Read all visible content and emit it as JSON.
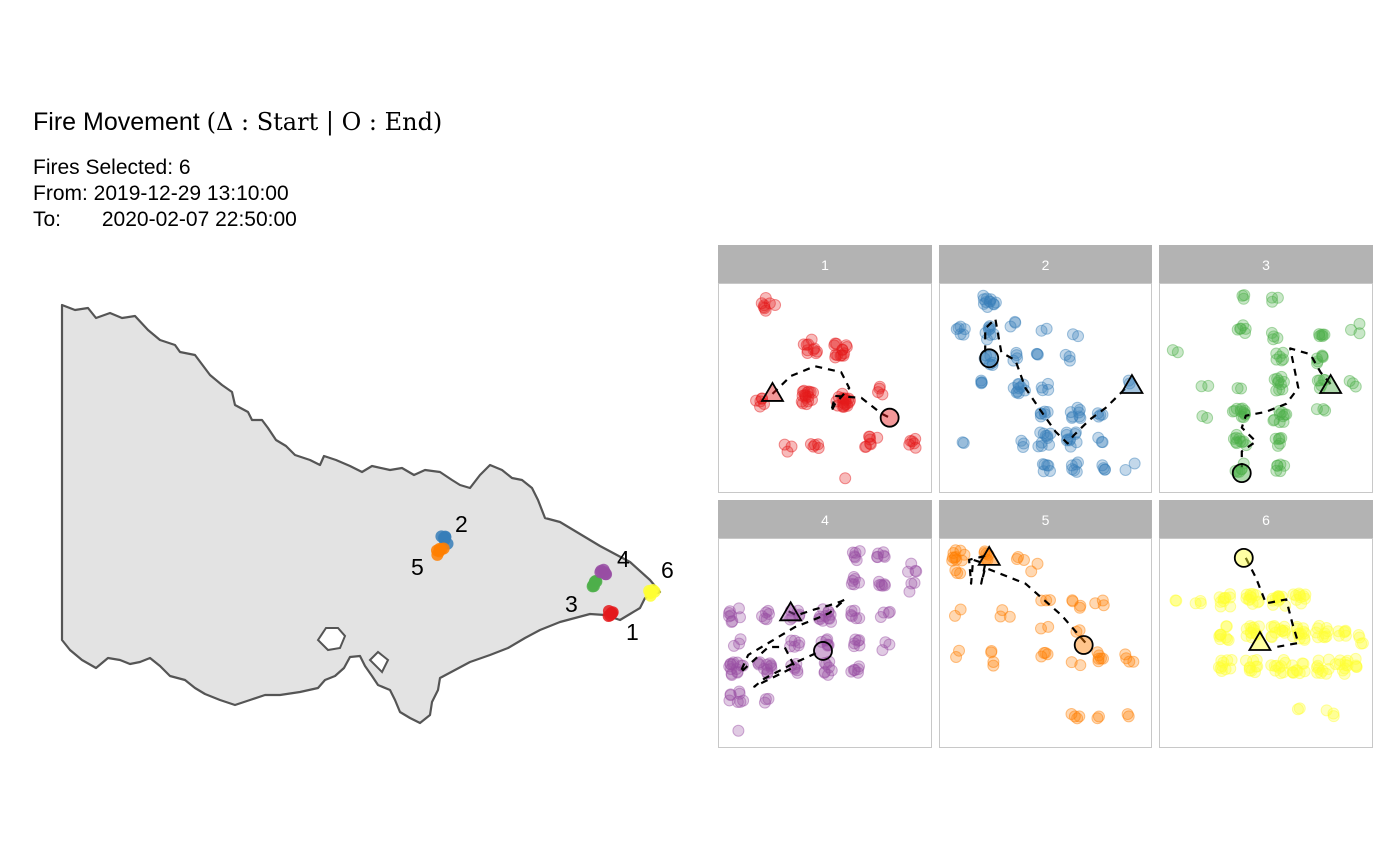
{
  "header": {
    "title_prefix": "Fire Movement ",
    "title_math": "(Δ : Start | O : End)",
    "subtitle_line1": "Fires Selected: 6",
    "subtitle_line2": "From: 2019-12-29 13:10:00",
    "subtitle_line3": "To:       2020-02-07 22:50:00"
  },
  "colors": {
    "1": "#e41a1c",
    "2": "#377eb8",
    "3": "#4daf4a",
    "4": "#984ea3",
    "5": "#ff7f00",
    "6": "#ffff33",
    "map_fill": "#e3e3e3",
    "map_stroke": "#555555",
    "strip_bg": "#b3b3b3",
    "panel_border": "#c8c8c8"
  },
  "chart_data": [
    {
      "type": "scatter",
      "name": "map",
      "labels": [
        "1",
        "2",
        "3",
        "4",
        "5",
        "6"
      ]
    },
    {
      "type": "scatter",
      "name": "facets",
      "facets": [
        {
          "label": "1",
          "clusters": [
            [
              0.43,
              0.29,
              10
            ],
            [
              0.58,
              0.31,
              14
            ],
            [
              0.42,
              0.55,
              16
            ],
            [
              0.59,
              0.56,
              18
            ],
            [
              0.18,
              0.57,
              6
            ],
            [
              0.22,
              0.08,
              8
            ],
            [
              0.45,
              0.8,
              5
            ],
            [
              0.73,
              0.78,
              8
            ],
            [
              0.93,
              0.78,
              6
            ],
            [
              0.32,
              0.8,
              3
            ],
            [
              0.78,
              0.51,
              4
            ],
            [
              0.58,
              0.95,
              1
            ]
          ],
          "path": [
            [
              0.24,
              0.53
            ],
            [
              0.33,
              0.44
            ],
            [
              0.45,
              0.39
            ],
            [
              0.58,
              0.42
            ],
            [
              0.62,
              0.5
            ],
            [
              0.55,
              0.58
            ],
            [
              0.53,
              0.62
            ],
            [
              0.55,
              0.54
            ],
            [
              0.68,
              0.55
            ],
            [
              0.78,
              0.63
            ],
            [
              0.82,
              0.65
            ]
          ],
          "start": [
            0.24,
            0.53
          ],
          "end": [
            0.82,
            0.65
          ]
        },
        {
          "label": "2",
          "clusters": [
            [
              0.22,
              0.06,
              12
            ],
            [
              0.08,
              0.21,
              6
            ],
            [
              0.22,
              0.22,
              8
            ],
            [
              0.35,
              0.19,
              3
            ],
            [
              0.5,
              0.22,
              2
            ],
            [
              0.64,
              0.22,
              2
            ],
            [
              0.22,
              0.36,
              6
            ],
            [
              0.35,
              0.34,
              4
            ],
            [
              0.48,
              0.34,
              3
            ],
            [
              0.62,
              0.34,
              3
            ],
            [
              0.2,
              0.48,
              4
            ],
            [
              0.37,
              0.5,
              10
            ],
            [
              0.5,
              0.5,
              4
            ],
            [
              0.5,
              0.63,
              6
            ],
            [
              0.64,
              0.63,
              8
            ],
            [
              0.78,
              0.63,
              4
            ],
            [
              0.5,
              0.76,
              10
            ],
            [
              0.64,
              0.76,
              10
            ],
            [
              0.37,
              0.79,
              3
            ],
            [
              0.78,
              0.76,
              3
            ],
            [
              0.5,
              0.9,
              6
            ],
            [
              0.64,
              0.9,
              6
            ],
            [
              0.78,
              0.9,
              4
            ],
            [
              0.92,
              0.9,
              2
            ],
            [
              0.92,
              0.48,
              2
            ],
            [
              0.1,
              0.79,
              2
            ]
          ],
          "path": [
            [
              0.2,
              0.32
            ],
            [
              0.2,
              0.2
            ],
            [
              0.25,
              0.15
            ],
            [
              0.28,
              0.32
            ],
            [
              0.35,
              0.36
            ],
            [
              0.4,
              0.5
            ],
            [
              0.48,
              0.62
            ],
            [
              0.55,
              0.72
            ],
            [
              0.61,
              0.78
            ],
            [
              0.64,
              0.74
            ],
            [
              0.72,
              0.66
            ],
            [
              0.8,
              0.6
            ],
            [
              0.9,
              0.5
            ]
          ],
          "start": [
            0.93,
            0.49
          ],
          "end": [
            0.22,
            0.35
          ]
        },
        {
          "label": "3",
          "clusters": [
            [
              0.4,
              0.05,
              3
            ],
            [
              0.55,
              0.06,
              3
            ],
            [
              0.38,
              0.2,
              6
            ],
            [
              0.55,
              0.24,
              4
            ],
            [
              0.77,
              0.22,
              6
            ],
            [
              0.94,
              0.2,
              3
            ],
            [
              0.05,
              0.33,
              2
            ],
            [
              0.57,
              0.34,
              6
            ],
            [
              0.77,
              0.36,
              6
            ],
            [
              0.57,
              0.48,
              10
            ],
            [
              0.77,
              0.48,
              6
            ],
            [
              0.93,
              0.48,
              3
            ],
            [
              0.2,
              0.48,
              2
            ],
            [
              0.37,
              0.48,
              2
            ],
            [
              0.2,
              0.63,
              2
            ],
            [
              0.37,
              0.63,
              12
            ],
            [
              0.57,
              0.64,
              10
            ],
            [
              0.77,
              0.63,
              3
            ],
            [
              0.37,
              0.77,
              10
            ],
            [
              0.57,
              0.77,
              6
            ],
            [
              0.37,
              0.9,
              6
            ],
            [
              0.57,
              0.9,
              6
            ]
          ],
          "path": [
            [
              0.82,
              0.48
            ],
            [
              0.77,
              0.42
            ],
            [
              0.72,
              0.33
            ],
            [
              0.62,
              0.3
            ],
            [
              0.64,
              0.4
            ],
            [
              0.66,
              0.5
            ],
            [
              0.6,
              0.58
            ],
            [
              0.5,
              0.62
            ],
            [
              0.4,
              0.64
            ],
            [
              0.38,
              0.7
            ],
            [
              0.45,
              0.77
            ],
            [
              0.38,
              0.82
            ],
            [
              0.38,
              0.9
            ]
          ],
          "start": [
            0.82,
            0.49
          ],
          "end": [
            0.38,
            0.93
          ]
        },
        {
          "label": "4",
          "clusters": [
            [
              0.65,
              0.06,
              6
            ],
            [
              0.78,
              0.06,
              6
            ],
            [
              0.93,
              0.12,
              4
            ],
            [
              0.65,
              0.19,
              6
            ],
            [
              0.78,
              0.19,
              6
            ],
            [
              0.92,
              0.22,
              3
            ],
            [
              0.06,
              0.36,
              8
            ],
            [
              0.2,
              0.36,
              6
            ],
            [
              0.35,
              0.36,
              6
            ],
            [
              0.5,
              0.36,
              12
            ],
            [
              0.65,
              0.36,
              6
            ],
            [
              0.8,
              0.36,
              4
            ],
            [
              0.06,
              0.5,
              3
            ],
            [
              0.35,
              0.5,
              6
            ],
            [
              0.5,
              0.5,
              6
            ],
            [
              0.65,
              0.5,
              6
            ],
            [
              0.8,
              0.52,
              3
            ],
            [
              0.06,
              0.63,
              14
            ],
            [
              0.2,
              0.63,
              12
            ],
            [
              0.35,
              0.63,
              6
            ],
            [
              0.5,
              0.63,
              8
            ],
            [
              0.65,
              0.63,
              6
            ],
            [
              0.06,
              0.78,
              8
            ],
            [
              0.2,
              0.78,
              3
            ],
            [
              0.06,
              0.92,
              1
            ]
          ],
          "path": [
            [
              0.32,
              0.34
            ],
            [
              0.36,
              0.36
            ],
            [
              0.45,
              0.33
            ],
            [
              0.52,
              0.31
            ],
            [
              0.58,
              0.29
            ],
            [
              0.6,
              0.28
            ],
            [
              0.52,
              0.35
            ],
            [
              0.45,
              0.38
            ],
            [
              0.35,
              0.42
            ],
            [
              0.22,
              0.5
            ],
            [
              0.12,
              0.56
            ],
            [
              0.08,
              0.65
            ],
            [
              0.22,
              0.52
            ],
            [
              0.3,
              0.52
            ],
            [
              0.35,
              0.62
            ],
            [
              0.15,
              0.72
            ],
            [
              0.2,
              0.68
            ],
            [
              0.35,
              0.6
            ],
            [
              0.48,
              0.54
            ]
          ],
          "start": [
            0.33,
            0.35
          ],
          "end": [
            0.49,
            0.54
          ]
        },
        {
          "label": "5",
          "clusters": [
            [
              0.07,
              0.06,
              10
            ],
            [
              0.22,
              0.06,
              6
            ],
            [
              0.37,
              0.08,
              3
            ],
            [
              0.07,
              0.14,
              3
            ],
            [
              0.45,
              0.12,
              2
            ],
            [
              0.5,
              0.3,
              3
            ],
            [
              0.65,
              0.3,
              4
            ],
            [
              0.77,
              0.3,
              3
            ],
            [
              0.07,
              0.35,
              2
            ],
            [
              0.3,
              0.35,
              3
            ],
            [
              0.5,
              0.44,
              2
            ],
            [
              0.65,
              0.46,
              2
            ],
            [
              0.07,
              0.55,
              2
            ],
            [
              0.22,
              0.55,
              2
            ],
            [
              0.5,
              0.56,
              4
            ],
            [
              0.77,
              0.57,
              6
            ],
            [
              0.92,
              0.58,
              4
            ],
            [
              0.65,
              0.62,
              2
            ],
            [
              0.22,
              0.62,
              2
            ],
            [
              0.65,
              0.88,
              4
            ],
            [
              0.92,
              0.87,
              2
            ],
            [
              0.77,
              0.86,
              2
            ]
          ],
          "path": [
            [
              0.2,
              0.06
            ],
            [
              0.12,
              0.08
            ],
            [
              0.13,
              0.2
            ],
            [
              0.14,
              0.08
            ],
            [
              0.2,
              0.1
            ],
            [
              0.18,
              0.2
            ],
            [
              0.2,
              0.12
            ],
            [
              0.4,
              0.2
            ],
            [
              0.58,
              0.36
            ],
            [
              0.7,
              0.5
            ]
          ],
          "start": [
            0.22,
            0.07
          ],
          "end": [
            0.69,
            0.51
          ]
        },
        {
          "label": "6",
          "clusters": [
            [
              0.06,
              0.3,
              2
            ],
            [
              0.17,
              0.3,
              3
            ],
            [
              0.3,
              0.28,
              10
            ],
            [
              0.43,
              0.28,
              12
            ],
            [
              0.56,
              0.28,
              12
            ],
            [
              0.66,
              0.28,
              10
            ],
            [
              0.3,
              0.45,
              10
            ],
            [
              0.43,
              0.45,
              12
            ],
            [
              0.56,
              0.45,
              12
            ],
            [
              0.66,
              0.45,
              12
            ],
            [
              0.78,
              0.45,
              10
            ],
            [
              0.88,
              0.45,
              6
            ],
            [
              0.96,
              0.48,
              4
            ],
            [
              0.3,
              0.62,
              10
            ],
            [
              0.43,
              0.62,
              10
            ],
            [
              0.56,
              0.62,
              10
            ],
            [
              0.66,
              0.62,
              10
            ],
            [
              0.78,
              0.62,
              10
            ],
            [
              0.88,
              0.62,
              10
            ],
            [
              0.96,
              0.6,
              4
            ],
            [
              0.66,
              0.85,
              2
            ],
            [
              0.82,
              0.85,
              3
            ]
          ],
          "path": [
            [
              0.4,
              0.07
            ],
            [
              0.45,
              0.17
            ],
            [
              0.5,
              0.3
            ],
            [
              0.6,
              0.28
            ],
            [
              0.63,
              0.4
            ],
            [
              0.66,
              0.5
            ],
            [
              0.55,
              0.52
            ]
          ],
          "start": [
            0.47,
            0.5
          ],
          "end": [
            0.39,
            0.07
          ]
        }
      ]
    }
  ]
}
